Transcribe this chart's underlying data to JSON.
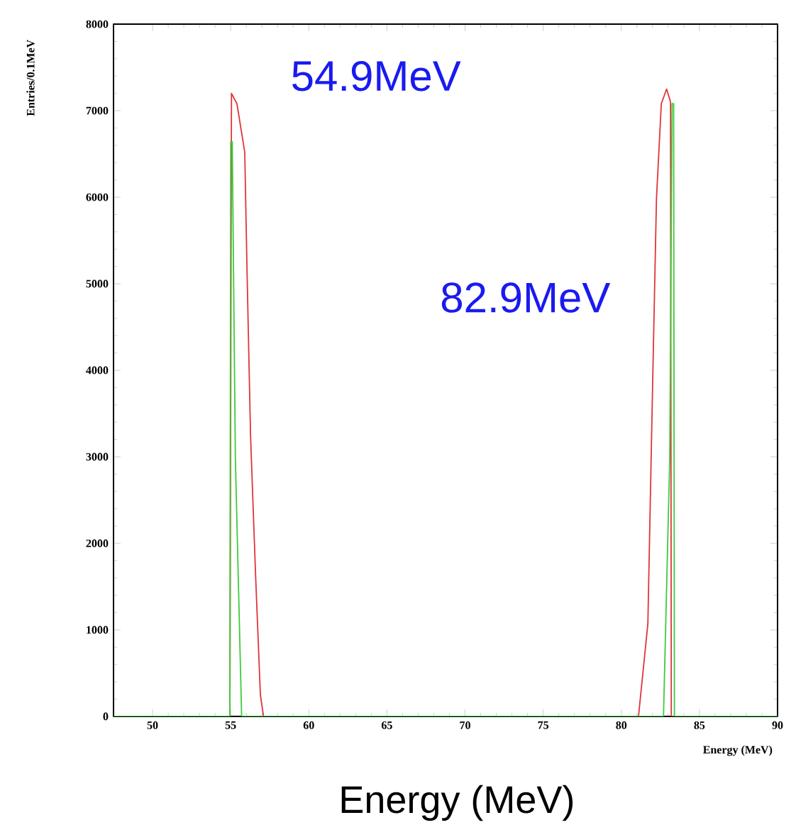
{
  "chart_data": {
    "type": "line",
    "xlabel": "Energy (MeV)",
    "ylabel": "Entries/0.1MeV",
    "annotations": [
      "54.9MeV",
      "82.9MeV",
      "Energy (MeV)"
    ],
    "xlim": [
      47.5,
      90
    ],
    "ylim": [
      0,
      8000
    ],
    "xticks": [
      50,
      55,
      60,
      65,
      70,
      75,
      80,
      85,
      90
    ],
    "yticks": [
      0,
      1000,
      2000,
      3000,
      4000,
      5000,
      6000,
      7000,
      8000
    ],
    "grid": false,
    "series": [
      {
        "color": "#e0343c",
        "x": [
          47.5,
          54.95,
          55.05,
          55.4,
          55.9,
          56.05,
          56.27,
          56.6,
          56.9,
          57.1,
          81.1,
          81.7,
          82.0,
          82.25,
          82.56,
          82.9,
          83.15,
          83.2,
          90
        ],
        "values": [
          0,
          0,
          7200,
          7080,
          6520,
          5110,
          3250,
          1600,
          250,
          0,
          0,
          1070,
          3800,
          5980,
          7080,
          7250,
          7100,
          0,
          0
        ]
      },
      {
        "color": "#3ccc3c",
        "x": [
          47.5,
          54.95,
          55.0,
          55.1,
          55.3,
          55.7,
          82.7,
          83.1,
          83.25,
          83.35,
          83.4,
          90
        ],
        "values": [
          0,
          0,
          6640,
          6640,
          2980,
          0,
          0,
          2980,
          7080,
          7080,
          0,
          0
        ]
      }
    ]
  }
}
